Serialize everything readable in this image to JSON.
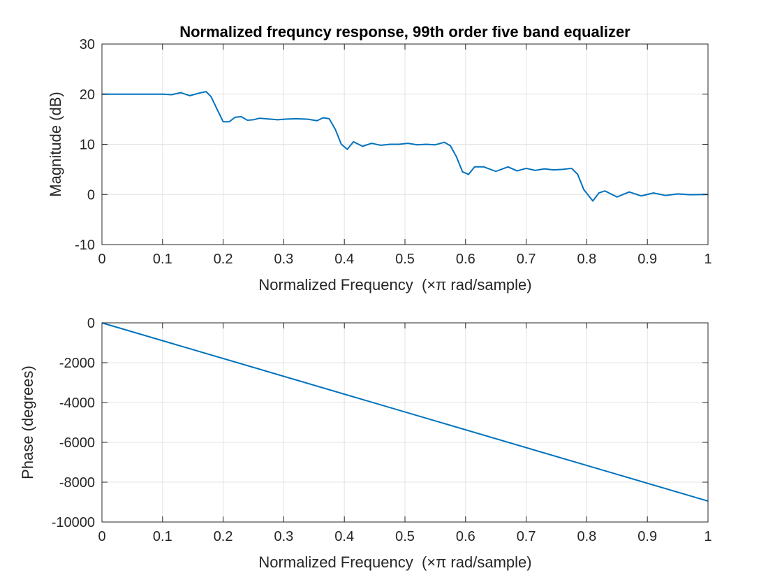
{
  "chart_data": [
    {
      "type": "line",
      "title": "Normalized frequncy response, 99th order five band equalizer",
      "xlabel": "Normalized Frequency  (×π rad/sample)",
      "ylabel": "Magnitude (dB)",
      "xlim": [
        0,
        1
      ],
      "ylim": [
        -10,
        30
      ],
      "xticks": [
        0,
        0.1,
        0.2,
        0.3,
        0.4,
        0.5,
        0.6,
        0.7,
        0.8,
        0.9,
        1
      ],
      "xtick_labels": [
        "0",
        "0.1",
        "0.2",
        "0.3",
        "0.4",
        "0.5",
        "0.6",
        "0.7",
        "0.8",
        "0.9",
        "1"
      ],
      "yticks": [
        -10,
        0,
        10,
        20,
        30
      ],
      "ytick_labels": [
        "-10",
        "0",
        "10",
        "20",
        "30"
      ],
      "grid": true,
      "color": "#0072BD",
      "series": [
        {
          "x": [
            0,
            0.02,
            0.04,
            0.06,
            0.08,
            0.1,
            0.115,
            0.13,
            0.145,
            0.16,
            0.172,
            0.18,
            0.19,
            0.2,
            0.21,
            0.22,
            0.23,
            0.24,
            0.25,
            0.26,
            0.27,
            0.28,
            0.29,
            0.3,
            0.32,
            0.34,
            0.355,
            0.365,
            0.375,
            0.385,
            0.395,
            0.405,
            0.415,
            0.43,
            0.445,
            0.46,
            0.475,
            0.49,
            0.505,
            0.52,
            0.535,
            0.55,
            0.565,
            0.575,
            0.585,
            0.595,
            0.605,
            0.615,
            0.63,
            0.65,
            0.67,
            0.685,
            0.7,
            0.715,
            0.73,
            0.745,
            0.76,
            0.775,
            0.785,
            0.795,
            0.81,
            0.82,
            0.83,
            0.85,
            0.87,
            0.89,
            0.91,
            0.93,
            0.95,
            0.97,
            1.0
          ],
          "y": [
            20,
            20,
            20,
            20,
            20,
            20,
            19.9,
            20.3,
            19.7,
            20.2,
            20.5,
            19.5,
            17,
            14.5,
            14.5,
            15.4,
            15.5,
            14.8,
            14.9,
            15.2,
            15.1,
            15,
            14.9,
            15,
            15.1,
            15,
            14.7,
            15.3,
            15.1,
            13,
            10,
            9,
            10.5,
            9.6,
            10.2,
            9.8,
            10,
            10,
            10.2,
            9.9,
            10,
            9.9,
            10.4,
            9.7,
            7.5,
            4.5,
            4,
            5.5,
            5.5,
            4.6,
            5.5,
            4.7,
            5.2,
            4.8,
            5.1,
            4.9,
            5,
            5.2,
            4,
            1,
            -1.3,
            0.3,
            0.7,
            -0.5,
            0.5,
            -0.3,
            0.3,
            -0.2,
            0.1,
            -0.05,
            0
          ]
        }
      ]
    },
    {
      "type": "line",
      "title": "",
      "xlabel": "Normalized Frequency  (×π rad/sample)",
      "ylabel": "Phase (degrees)",
      "xlim": [
        0,
        1
      ],
      "ylim": [
        -10000,
        0
      ],
      "xticks": [
        0,
        0.1,
        0.2,
        0.3,
        0.4,
        0.5,
        0.6,
        0.7,
        0.8,
        0.9,
        1
      ],
      "xtick_labels": [
        "0",
        "0.1",
        "0.2",
        "0.3",
        "0.4",
        "0.5",
        "0.6",
        "0.7",
        "0.8",
        "0.9",
        "1"
      ],
      "yticks": [
        -10000,
        -8000,
        -6000,
        -4000,
        -2000,
        0
      ],
      "ytick_labels": [
        "-10000",
        "-8000",
        "-6000",
        "-4000",
        "-2000",
        "0"
      ],
      "grid": true,
      "color": "#0072BD",
      "series": [
        {
          "x": [
            0,
            1
          ],
          "y": [
            0,
            -8950
          ]
        }
      ]
    }
  ]
}
